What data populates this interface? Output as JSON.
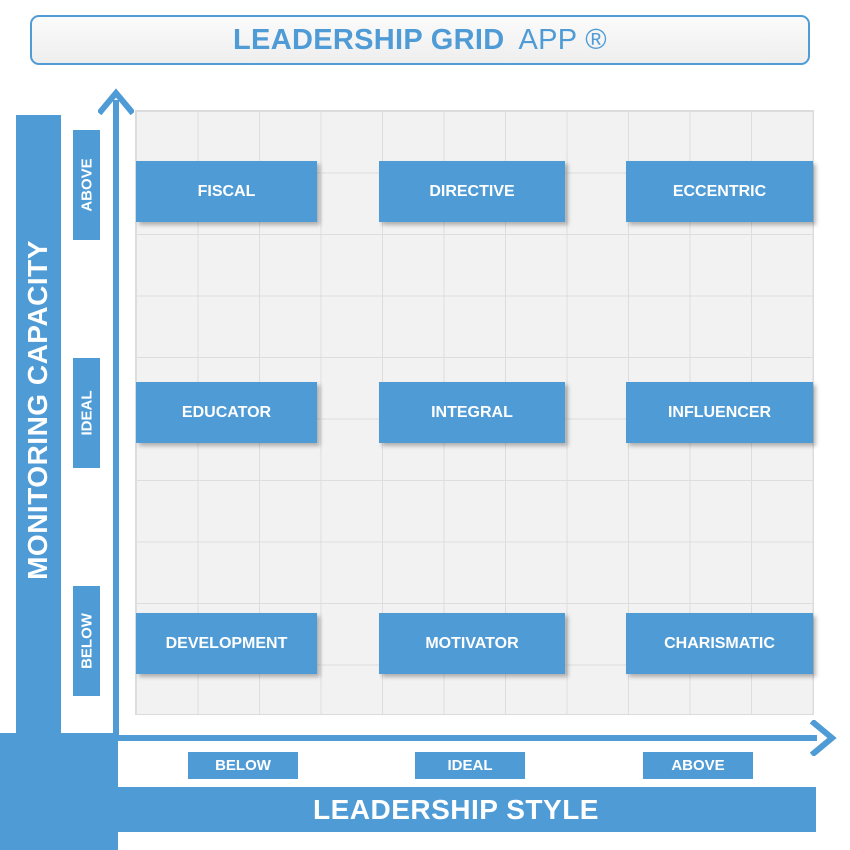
{
  "title": {
    "main": "LEADERSHIP GRID",
    "suffix": "APP ®"
  },
  "y_axis": {
    "label": "MONITORING CAPACITY",
    "levels": [
      "ABOVE",
      "IDEAL",
      "BELOW"
    ]
  },
  "x_axis": {
    "label": "LEADERSHIP STYLE",
    "levels": [
      "BELOW",
      "IDEAL",
      "ABOVE"
    ]
  },
  "grid": {
    "rows": [
      [
        "FISCAL",
        "DIRECTIVE",
        "ECCENTRIC"
      ],
      [
        "EDUCATOR",
        "INTEGRAL",
        "INFLUENCER"
      ],
      [
        "DEVELOPMENT",
        "MOTIVATOR",
        "CHARISMATIC"
      ]
    ]
  },
  "colors": {
    "accent": "#4f9bd6",
    "grid_bg": "#f2f2f2",
    "grid_line": "#dddddd"
  }
}
